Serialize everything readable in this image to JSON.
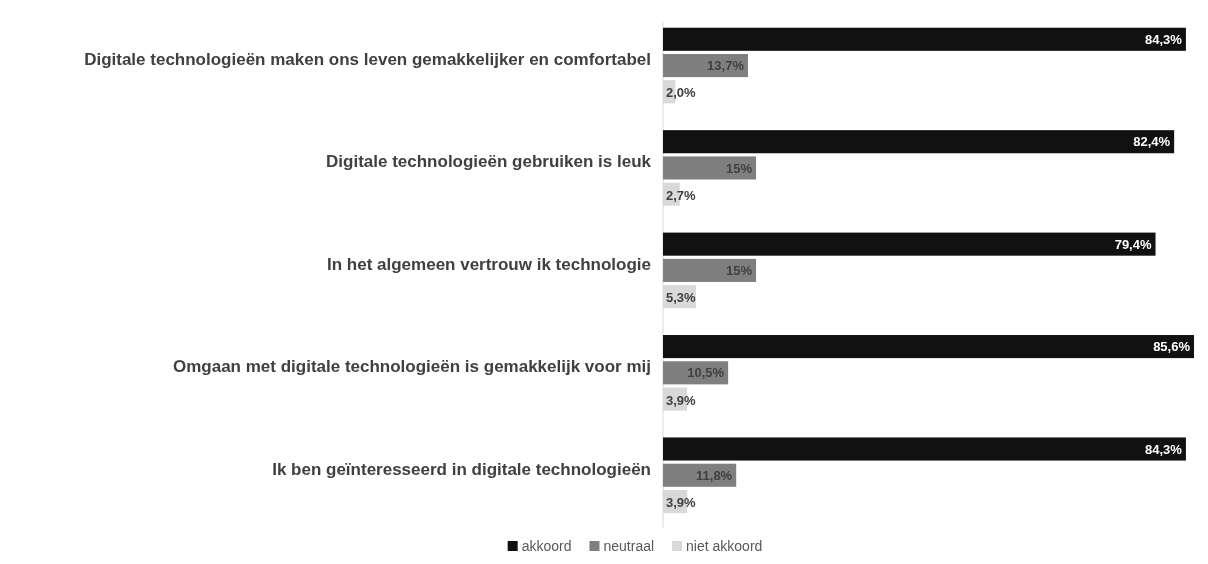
{
  "chart_data": {
    "type": "bar",
    "orientation": "horizontal",
    "categories": [
      "Digitale technologieën maken ons leven gemakkelijker en comfortabel",
      "Digitale technologieën gebruiken is leuk",
      "In het algemeen vertrouw ik technologie",
      "Omgaan met digitale technologieën is gemakkelijk voor mij",
      "Ik ben geïnteresseerd in digitale technologieën"
    ],
    "series": [
      {
        "name": "akkoord",
        "color": "#111111",
        "values": [
          84.3,
          82.4,
          79.4,
          85.6,
          84.3
        ],
        "value_labels": [
          "84,3%",
          "82,4%",
          "79,4%",
          "85,6%",
          "84,3%"
        ]
      },
      {
        "name": "neutraal",
        "color": "#7f7f7f",
        "values": [
          13.7,
          15,
          15,
          10.5,
          11.8
        ],
        "value_labels": [
          "13,7%",
          "15%",
          "15%",
          "10,5%",
          "11,8%"
        ]
      },
      {
        "name": "niet akkoord",
        "color": "#d9d9d9",
        "values": [
          2.0,
          2.7,
          5.3,
          3.9,
          3.9
        ],
        "value_labels": [
          "2,0%",
          "2,7%",
          "5,3%",
          "3,9%",
          "3,9%"
        ]
      }
    ],
    "legend": "bottom"
  }
}
